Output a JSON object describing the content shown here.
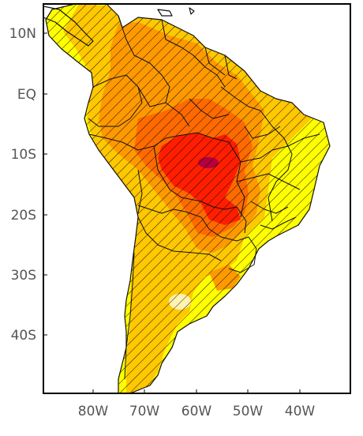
{
  "map": {
    "y_axis_labels": [
      "10N",
      "EQ",
      "10S",
      "20S",
      "30S",
      "40S"
    ],
    "x_axis_labels": [
      "80W",
      "70W",
      "60W",
      "50W",
      "40W"
    ],
    "lat_values": [
      10,
      0,
      -10,
      -20,
      -30,
      -40
    ],
    "lon_values": [
      -80,
      -70,
      -60,
      -50,
      -40
    ],
    "extent": {
      "lon": [
        -90,
        -30
      ],
      "lat": [
        -50,
        15
      ]
    },
    "shading_levels": [
      {
        "name": "level-1",
        "color": "#ffff00"
      },
      {
        "name": "level-2",
        "color": "#ffc800"
      },
      {
        "name": "level-3",
        "color": "#ff9900"
      },
      {
        "name": "level-4",
        "color": "#ff6a00"
      },
      {
        "name": "level-5",
        "color": "#ff1e00"
      },
      {
        "name": "level-6",
        "color": "#b4003c"
      },
      {
        "name": "low-spot",
        "color": "#fff3b0"
      }
    ],
    "hatching": "diagonal-black",
    "frame_color": "#000000"
  }
}
